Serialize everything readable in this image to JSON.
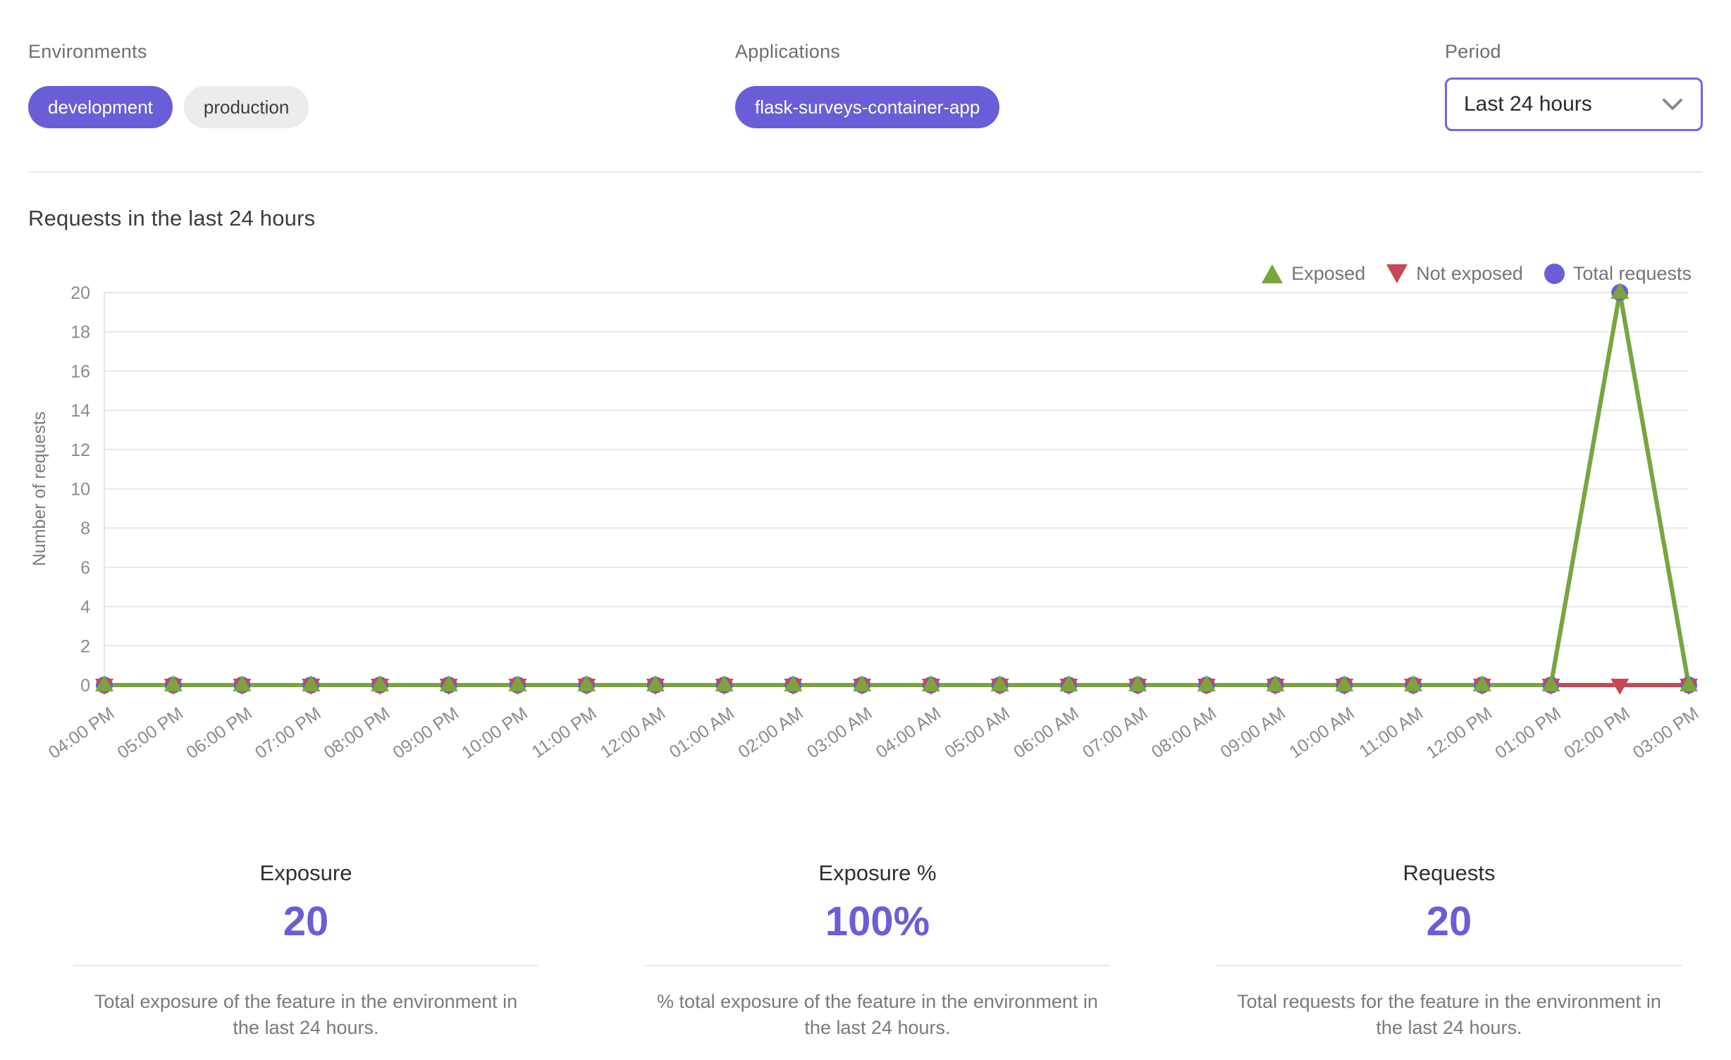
{
  "colors": {
    "accent": "#6a5ed8",
    "exposed_green": "#7aa53c",
    "not_exposed_red": "#c84754",
    "total_requests_purple": "#6a5ed8",
    "grid_line": "#e7e7e7",
    "chip_inactive_bg": "#ececec"
  },
  "filters": {
    "environments": {
      "label": "Environments",
      "items": [
        {
          "label": "development",
          "selected": true
        },
        {
          "label": "production",
          "selected": false
        }
      ]
    },
    "applications": {
      "label": "Applications",
      "items": [
        {
          "label": "flask-surveys-container-app",
          "selected": true
        }
      ]
    },
    "period": {
      "label": "Period",
      "value": "Last 24 hours",
      "chevron_icon": "chevron-down"
    }
  },
  "chart_data": {
    "type": "line",
    "title": "Requests in the last 24 hours",
    "xlabel": "",
    "ylabel": "Number of requests",
    "ylim": [
      0,
      20
    ],
    "ytick_step": 2,
    "yticks": [
      0,
      2,
      4,
      6,
      8,
      10,
      12,
      14,
      16,
      18,
      20
    ],
    "grid": "horizontal",
    "legend_position": "top-right",
    "categories": [
      "04:00 PM",
      "05:00 PM",
      "06:00 PM",
      "07:00 PM",
      "08:00 PM",
      "09:00 PM",
      "10:00 PM",
      "11:00 PM",
      "12:00 AM",
      "01:00 AM",
      "02:00 AM",
      "03:00 AM",
      "04:00 AM",
      "05:00 AM",
      "06:00 AM",
      "07:00 AM",
      "08:00 AM",
      "09:00 AM",
      "10:00 AM",
      "11:00 AM",
      "12:00 PM",
      "01:00 PM",
      "02:00 PM",
      "03:00 PM"
    ],
    "series": [
      {
        "name": "Exposed",
        "marker": "triangle-up",
        "color": "#7aa53c",
        "values": [
          0,
          0,
          0,
          0,
          0,
          0,
          0,
          0,
          0,
          0,
          0,
          0,
          0,
          0,
          0,
          0,
          0,
          0,
          0,
          0,
          0,
          0,
          20,
          0
        ]
      },
      {
        "name": "Not exposed",
        "marker": "triangle-down",
        "color": "#c84754",
        "values": [
          0,
          0,
          0,
          0,
          0,
          0,
          0,
          0,
          0,
          0,
          0,
          0,
          0,
          0,
          0,
          0,
          0,
          0,
          0,
          0,
          0,
          0,
          0,
          0
        ]
      },
      {
        "name": "Total requests",
        "marker": "circle",
        "color": "#6a5ed8",
        "values": [
          0,
          0,
          0,
          0,
          0,
          0,
          0,
          0,
          0,
          0,
          0,
          0,
          0,
          0,
          0,
          0,
          0,
          0,
          0,
          0,
          0,
          0,
          20,
          0
        ]
      }
    ]
  },
  "stats": [
    {
      "title": "Exposure",
      "value": "20",
      "description": "Total exposure of the feature in the environment in the last 24 hours."
    },
    {
      "title": "Exposure %",
      "value": "100%",
      "description": "% total exposure of the feature in the environment in the last 24 hours."
    },
    {
      "title": "Requests",
      "value": "20",
      "description": "Total requests for the feature in the environment in the last 24 hours."
    }
  ]
}
